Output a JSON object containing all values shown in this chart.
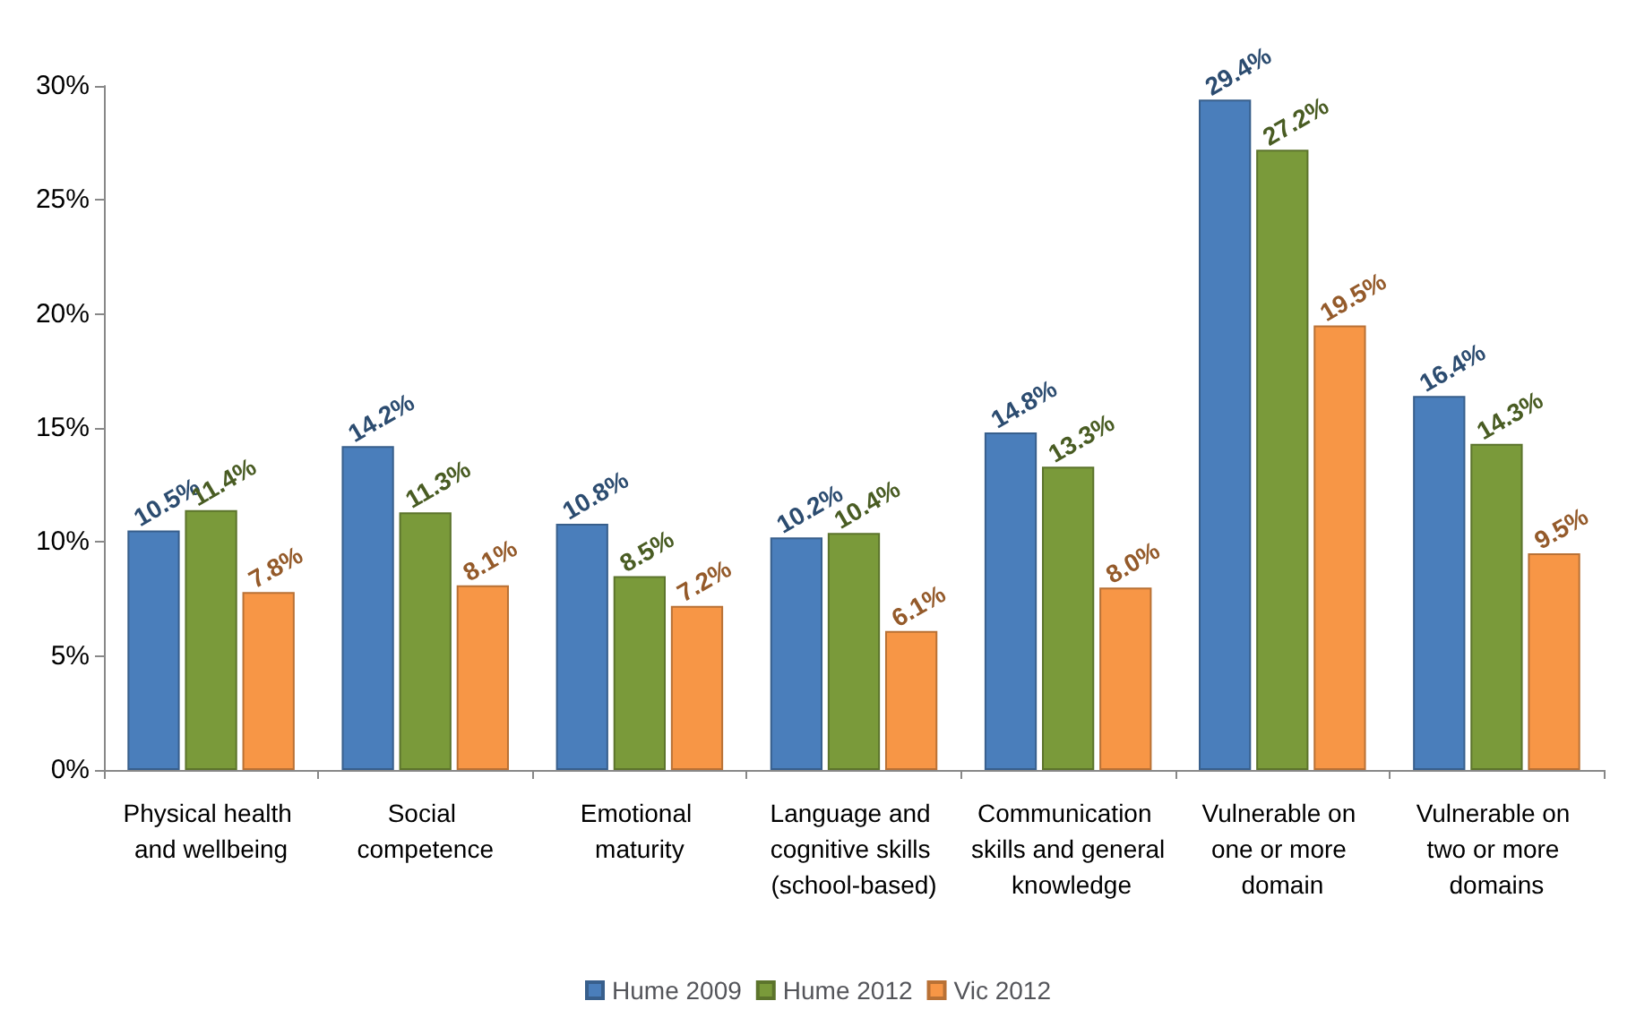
{
  "chart_data": {
    "type": "bar",
    "categories": [
      "Physical health and wellbeing",
      "Social competence",
      "Emotional maturity",
      "Language and cognitive skills (school-based)",
      "Communication skills and general knowledge",
      "Vulnerable on one or more domain",
      "Vulnerable on two or more domains"
    ],
    "series": [
      {
        "name": "Hume 2009",
        "color": "#4a7ebb",
        "values": [
          10.5,
          14.2,
          10.8,
          10.2,
          14.8,
          29.4,
          16.4
        ],
        "value_labels": [
          "10.5%",
          "14.2%",
          "10.8%",
          "10.2%",
          "14.8%",
          "29.4%",
          "16.4%"
        ]
      },
      {
        "name": "Hume 2012",
        "color": "#7a9a3a",
        "values": [
          11.4,
          11.3,
          8.5,
          10.4,
          13.3,
          27.2,
          14.3
        ],
        "value_labels": [
          "11.4%",
          "11.3%",
          "8.5%",
          "10.4%",
          "13.3%",
          "27.2%",
          "14.3%"
        ]
      },
      {
        "name": "Vic 2012",
        "color": "#f79646",
        "values": [
          7.8,
          8.1,
          7.2,
          6.1,
          8.0,
          19.5,
          9.5
        ],
        "value_labels": [
          "7.8%",
          "8.1%",
          "7.2%",
          "6.1%",
          "8.0%",
          "19.5%",
          "9.5%"
        ]
      }
    ],
    "ylim": [
      0,
      30
    ],
    "yticks": [
      {
        "value": 0,
        "label": "0%"
      },
      {
        "value": 5,
        "label": "5%"
      },
      {
        "value": 10,
        "label": "10%"
      },
      {
        "value": 15,
        "label": "15%"
      },
      {
        "value": 20,
        "label": "20%"
      },
      {
        "value": 25,
        "label": "25%"
      },
      {
        "value": 30,
        "label": "30%"
      }
    ],
    "grid": false,
    "legend": "bottom"
  }
}
